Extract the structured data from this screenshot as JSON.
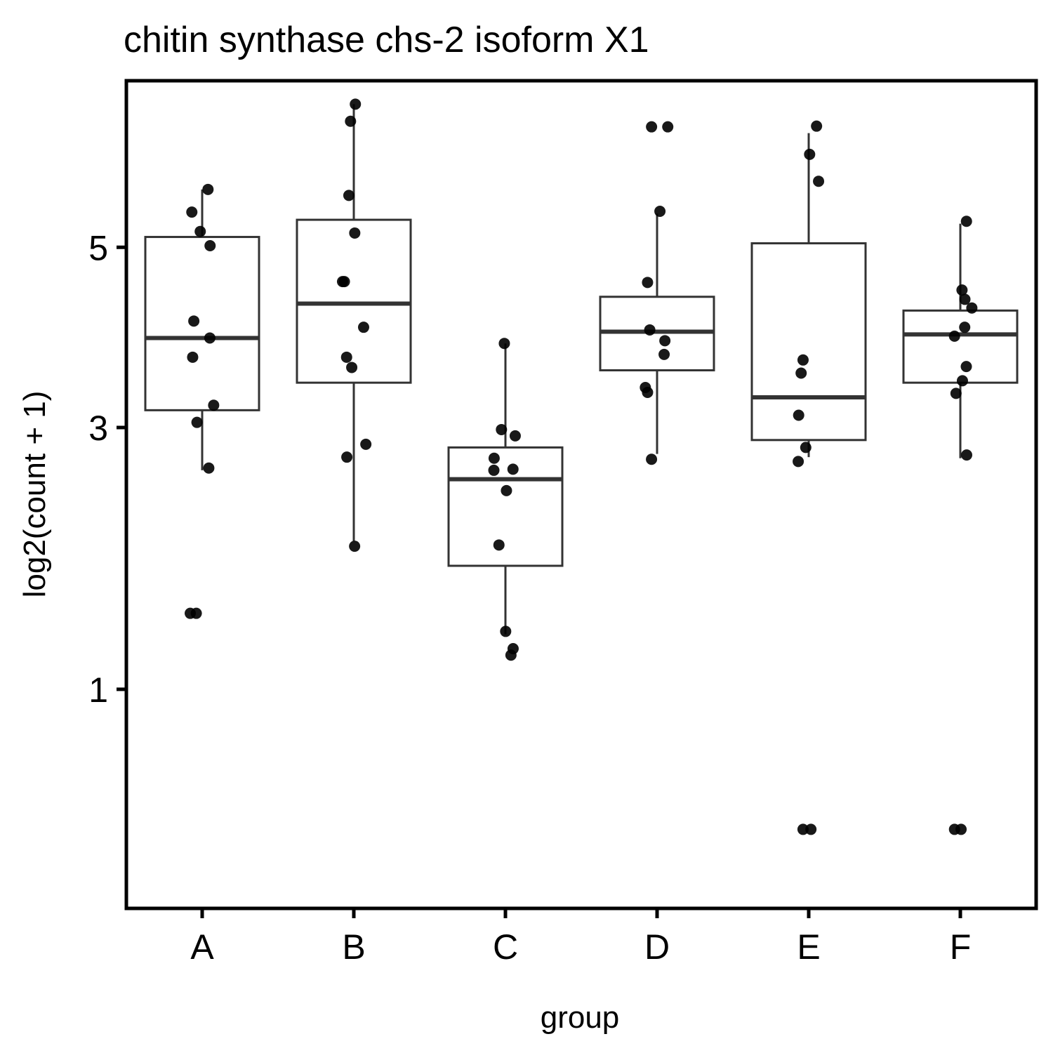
{
  "chart_data": {
    "type": "boxplot",
    "title": "chitin synthase chs-2 isoform X1",
    "xlabel": "group",
    "ylabel": "log2(count + 1)",
    "y_scale": "sqrt",
    "ylim": [
      0.15,
      7.3
    ],
    "y_ticks": [
      1,
      3,
      5
    ],
    "y_tick_labels": [
      "1",
      "3",
      "5"
    ],
    "categories": [
      "A",
      "B",
      "C",
      "D",
      "E",
      "F"
    ],
    "grid": false,
    "legend": "none",
    "boxes": [
      {
        "group": "A",
        "lower_whisker": 2.6,
        "q1": 3.17,
        "median": 3.93,
        "q3": 5.13,
        "upper_whisker": 5.75
      },
      {
        "group": "B",
        "lower_whisker": 2.0,
        "q1": 3.45,
        "median": 4.32,
        "q3": 5.35,
        "upper_whisker": 6.95
      },
      {
        "group": "C",
        "lower_whisker": 1.33,
        "q1": 1.81,
        "median": 2.52,
        "q3": 2.81,
        "upper_whisker": 3.87
      },
      {
        "group": "D",
        "lower_whisker": 2.75,
        "q1": 3.58,
        "median": 4.0,
        "q3": 4.4,
        "upper_whisker": 5.43
      },
      {
        "group": "E",
        "lower_whisker": 2.72,
        "q1": 2.88,
        "median": 3.3,
        "q3": 5.05,
        "upper_whisker": 6.53
      },
      {
        "group": "F",
        "lower_whisker": 2.71,
        "q1": 3.45,
        "median": 3.97,
        "q3": 4.24,
        "upper_whisker": 5.3
      }
    ],
    "points": [
      {
        "group": "A",
        "values": [
          5.75,
          5.45,
          5.2,
          5.02,
          4.12,
          3.93,
          3.72,
          3.22,
          3.05,
          2.62,
          1.47,
          1.47
        ]
      },
      {
        "group": "B",
        "values": [
          6.95,
          6.7,
          5.67,
          5.18,
          4.58,
          4.58,
          4.05,
          3.72,
          3.61,
          2.84,
          2.72,
          1.96
        ]
      },
      {
        "group": "C",
        "values": [
          3.87,
          2.98,
          2.92,
          2.71,
          2.61,
          2.6,
          2.42,
          1.97,
          1.35,
          1.24,
          1.2
        ]
      },
      {
        "group": "D",
        "values": [
          6.62,
          6.62,
          5.46,
          4.57,
          4.02,
          3.9,
          3.75,
          3.4,
          3.35,
          2.7
        ]
      },
      {
        "group": "E",
        "values": [
          6.63,
          6.23,
          5.86,
          3.69,
          3.55,
          3.12,
          2.81,
          2.68,
          0.37,
          0.37
        ]
      },
      {
        "group": "F",
        "values": [
          5.33,
          4.48,
          4.37,
          4.27,
          4.05,
          3.95,
          3.62,
          3.47,
          3.34,
          2.74,
          0.37,
          0.37
        ]
      }
    ]
  }
}
